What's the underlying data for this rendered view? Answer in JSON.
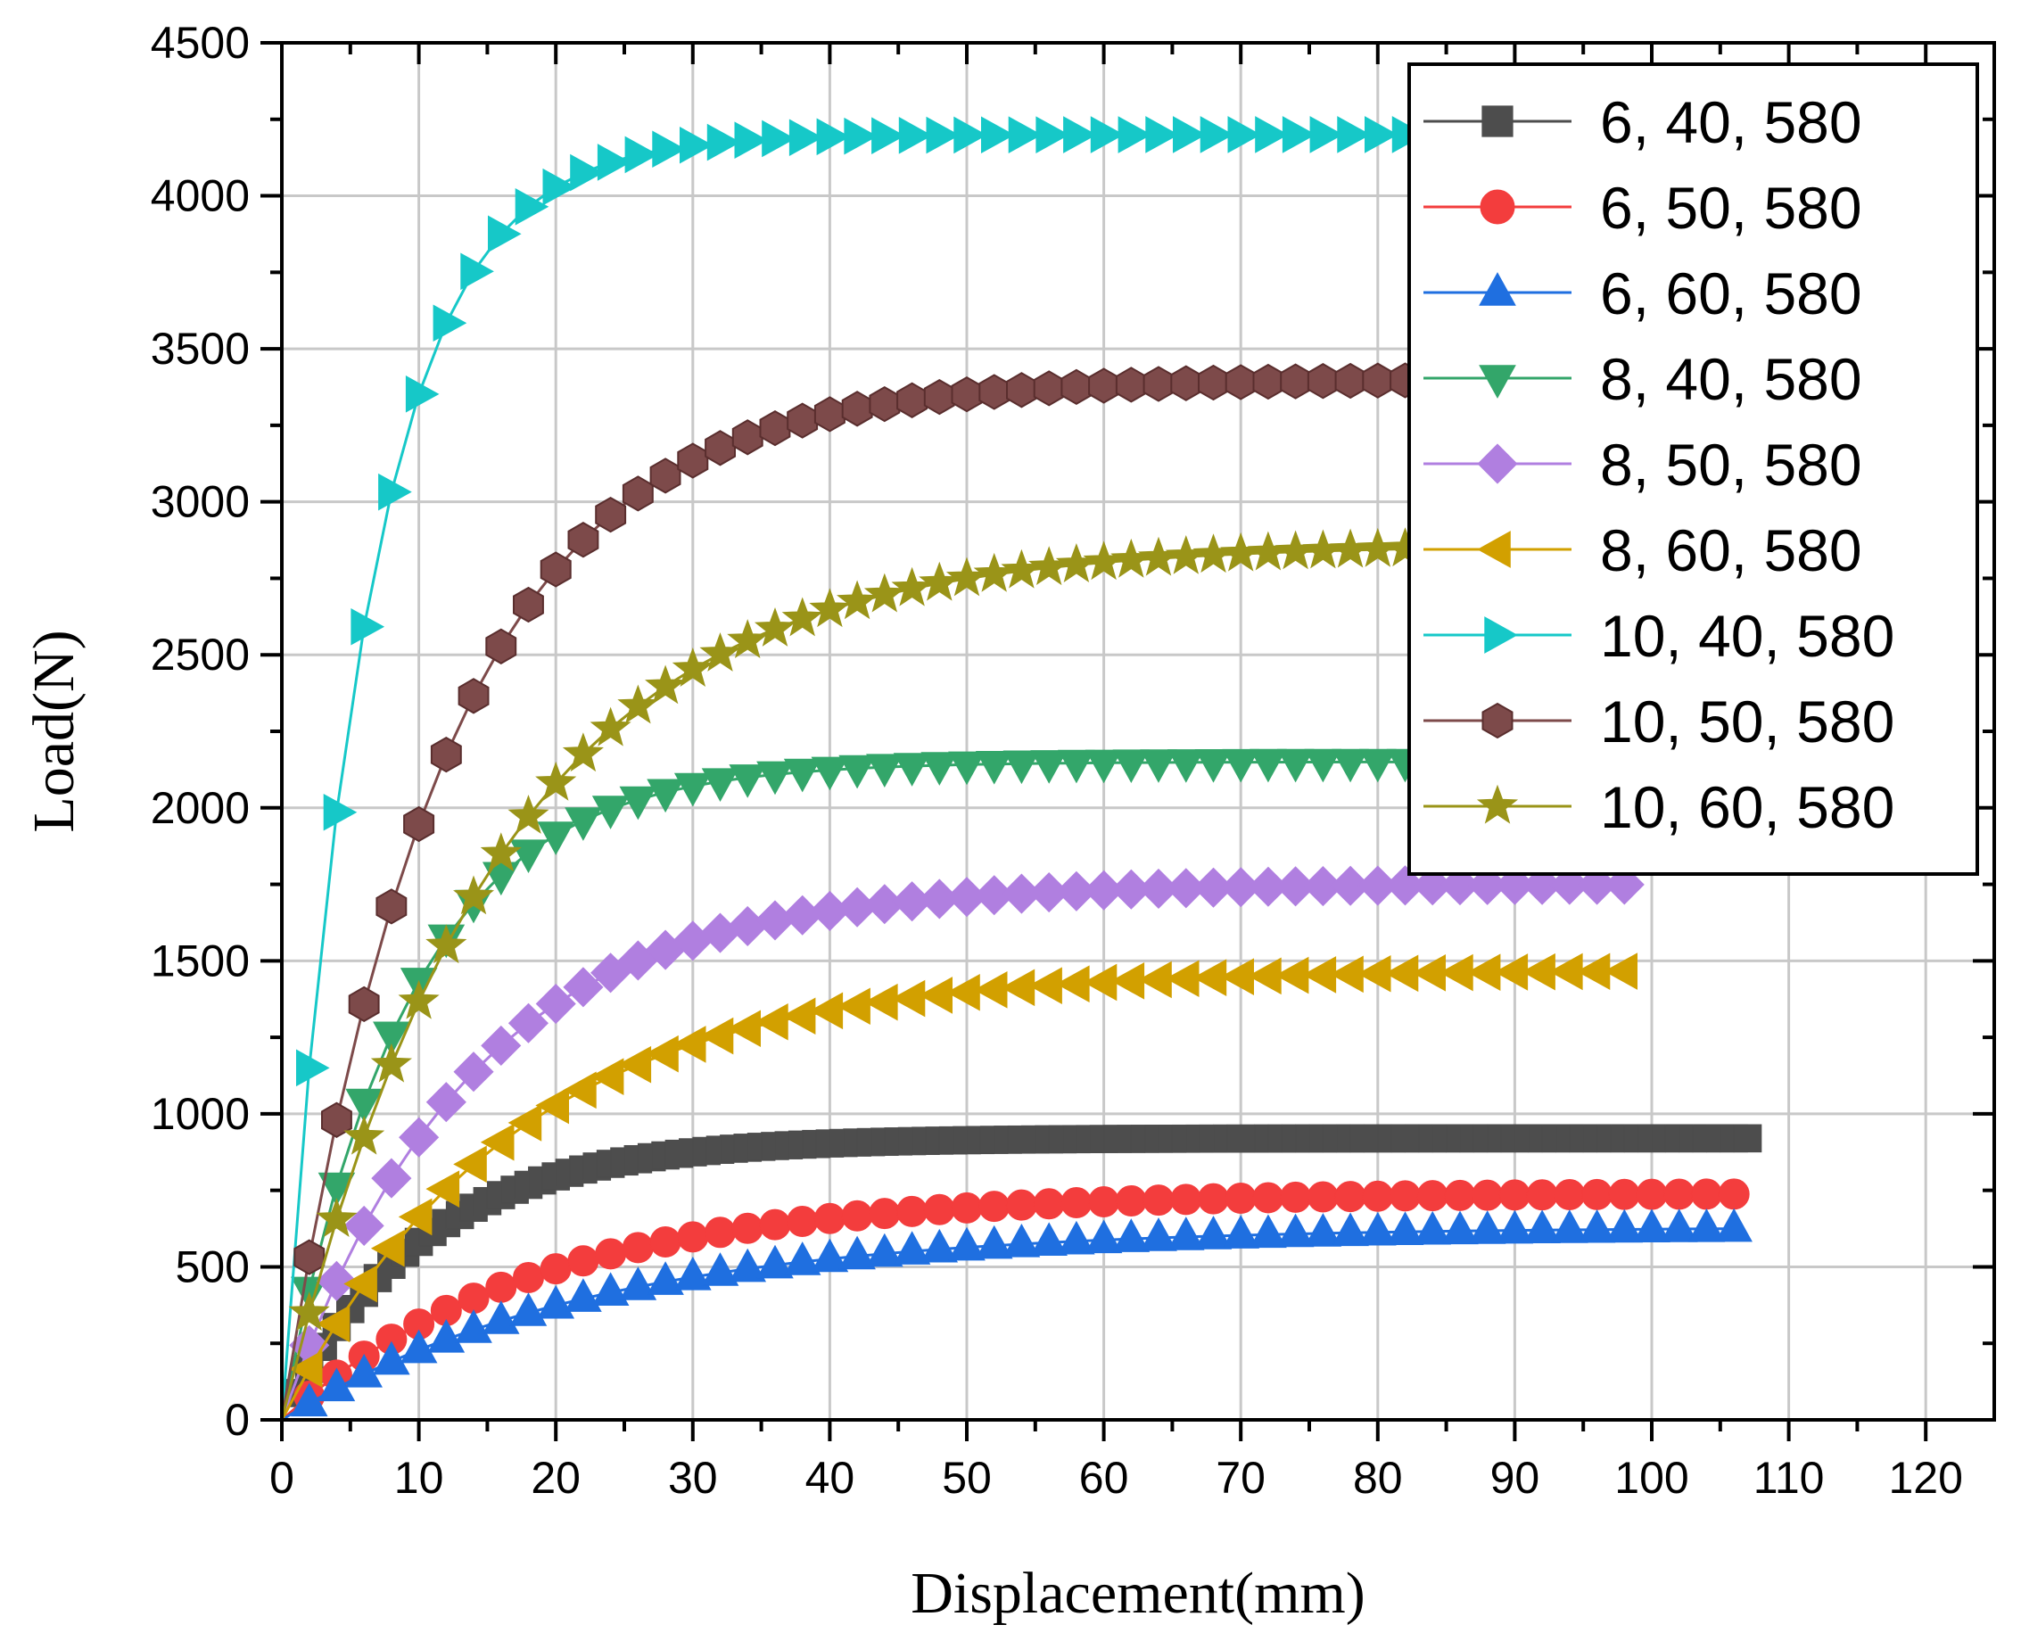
{
  "chart_data": {
    "type": "line",
    "title": "",
    "xlabel": "Displacement(mm)",
    "ylabel": "Load(N)",
    "xlim": [
      0,
      125
    ],
    "ylim": [
      0,
      4500
    ],
    "xticks": [
      0,
      10,
      20,
      30,
      40,
      50,
      60,
      70,
      80,
      90,
      100,
      110,
      120
    ],
    "yticks": [
      0,
      500,
      1000,
      1500,
      2000,
      2500,
      3000,
      3500,
      4000,
      4500
    ],
    "grid": true,
    "legend_position": "top-right",
    "series": [
      {
        "name": "6, 40, 580",
        "color": "#4d4d4d",
        "marker": "square",
        "plateau": 920,
        "k": 0.1,
        "x_end": 107,
        "step": 1.0
      },
      {
        "name": "6, 50, 580",
        "color": "#f33d3d",
        "marker": "circle",
        "plateau": 740,
        "k": 0.055,
        "x_end": 107,
        "step": 2.0
      },
      {
        "name": "6, 60, 580",
        "color": "#1f6fe0",
        "marker": "triangle-up",
        "plateau": 630,
        "k": 0.045,
        "x_end": 107,
        "step": 2.0
      },
      {
        "name": "8, 40, 580",
        "color": "#33a66a",
        "marker": "triangle-down",
        "plateau": 2150,
        "k": 0.11,
        "x_end": 84,
        "step": 2.0
      },
      {
        "name": "8, 50, 580",
        "color": "#b07fe0",
        "marker": "diamond",
        "plateau": 1750,
        "k": 0.075,
        "x_end": 99,
        "step": 2.0
      },
      {
        "name": "8, 60, 580",
        "color": "#d2a000",
        "marker": "triangle-left",
        "plateau": 1470,
        "k": 0.06,
        "x_end": 99,
        "step": 2.0
      },
      {
        "name": "10, 40, 580",
        "color": "#16c8c8",
        "marker": "triangle-right",
        "plateau": 4200,
        "k": 0.16,
        "x_end": 84,
        "step": 2.0
      },
      {
        "name": "10, 50, 580",
        "color": "#7d4a4a",
        "marker": "hexagon",
        "plateau": 3400,
        "k": 0.085,
        "x_end": 84,
        "step": 2.0
      },
      {
        "name": "10, 60, 580",
        "color": "#9a9418",
        "marker": "star",
        "plateau": 2860,
        "k": 0.065,
        "x_end": 84,
        "step": 2.0
      }
    ]
  }
}
